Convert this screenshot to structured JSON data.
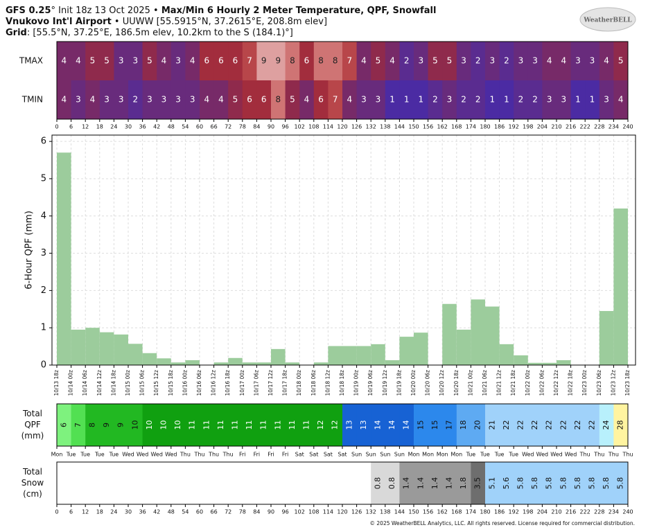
{
  "header": {
    "lines": [
      [
        {
          "text": "GFS 0.25",
          "bold": true
        },
        {
          "text": "° Init 18z 13 Oct 2025 • ",
          "bold": false
        },
        {
          "text": "Max/Min 6 Hourly 2 Meter Temperature,  QPF,  Snowfall",
          "bold": true
        }
      ],
      [
        {
          "text": "Vnukovo Int'l Airport",
          "bold": true
        },
        {
          "text": " • UUWW [55.5915°N, 37.2615°E, 208.8m elev]",
          "bold": false
        }
      ],
      [
        {
          "text": "Grid",
          "bold": true
        },
        {
          "text": ": [55.5°N, 37.25°E, 186.5m elev, 10.2km to the S (184.1)°]",
          "bold": false
        }
      ]
    ],
    "logo": "WeatherBELL",
    "footer": "© 2025 WeatherBELL Analytics, LLC. All rights reserved. License required for commercial distribution."
  },
  "chart_data": [
    {
      "type": "heatmap",
      "xticks": [
        0,
        6,
        12,
        18,
        24,
        30,
        36,
        42,
        48,
        54,
        60,
        66,
        72,
        78,
        84,
        90,
        96,
        102,
        108,
        114,
        120,
        126,
        132,
        138,
        144,
        150,
        156,
        162,
        168,
        174,
        180,
        186,
        192,
        198,
        204,
        210,
        216,
        222,
        228,
        234,
        240
      ],
      "color_scale": {
        "1": "#4b2ba3",
        "2": "#5a2c90",
        "3": "#682b7c",
        "4": "#772a68",
        "5": "#8f2a4c",
        "6": "#a22d3d",
        "7": "#b8464a",
        "8": "#cf7474",
        "9": "#dea0a0"
      },
      "rows": [
        {
          "name": "TMAX",
          "values": [
            4,
            4,
            5,
            5,
            3,
            3,
            5,
            4,
            3,
            4,
            6,
            6,
            6,
            7,
            9,
            9,
            8,
            6,
            8,
            8,
            7,
            4,
            5,
            4,
            2,
            3,
            5,
            5,
            3,
            2,
            3,
            2,
            3,
            3,
            4,
            4,
            3,
            3,
            4,
            5
          ]
        },
        {
          "name": "TMIN",
          "values": [
            4,
            3,
            4,
            3,
            3,
            2,
            3,
            3,
            3,
            3,
            4,
            4,
            5,
            6,
            6,
            8,
            5,
            4,
            6,
            7,
            4,
            3,
            3,
            1,
            1,
            1,
            2,
            3,
            2,
            2,
            1,
            1,
            2,
            2,
            3,
            3,
            1,
            1,
            3,
            4
          ]
        }
      ]
    },
    {
      "type": "histogram",
      "ylabel": "6-Hour QPF (mm)",
      "color": "#9ccc9c",
      "ylim": [
        0,
        6.17
      ],
      "yticks": [
        0,
        1,
        2,
        3,
        4,
        5,
        6
      ],
      "grid": true,
      "x_labels": [
        "10/13 18z",
        "10/14 00z",
        "10/14 06z",
        "10/14 12z",
        "10/14 18z",
        "10/15 00z",
        "10/15 06z",
        "10/15 12z",
        "10/15 18z",
        "10/16 00z",
        "10/16 06z",
        "10/16 12z",
        "10/16 18z",
        "10/17 00z",
        "10/17 06z",
        "10/17 12z",
        "10/17 18z",
        "10/18 00z",
        "10/18 06z",
        "10/18 12z",
        "10/18 18z",
        "10/19 00z",
        "10/19 06z",
        "10/19 12z",
        "10/19 18z",
        "10/20 00z",
        "10/20 06z",
        "10/20 12z",
        "10/20 18z",
        "10/21 00z",
        "10/21 06z",
        "10/21 12z",
        "10/21 18z",
        "10/22 00z",
        "10/22 06z",
        "10/22 12z",
        "10/22 18z",
        "10/23 00z",
        "10/23 06z",
        "10/23 12z",
        "10/23 18z"
      ],
      "values": [
        5.7,
        0.95,
        1.0,
        0.88,
        0.82,
        0.57,
        0.32,
        0.18,
        0.07,
        0.13,
        0,
        0.07,
        0.19,
        0.07,
        0.07,
        0.43,
        0.07,
        0,
        0.07,
        0.51,
        0.51,
        0.51,
        0.56,
        0.13,
        0.76,
        0.87,
        0,
        1.64,
        0.95,
        1.76,
        1.57,
        0.56,
        0.26,
        0.06,
        0.06,
        0.13,
        0,
        0,
        1.45,
        4.2
      ]
    },
    {
      "type": "accumulation",
      "label": [
        "Total",
        "QPF",
        "(mm)"
      ],
      "values": [
        6,
        7,
        8,
        9,
        9,
        10,
        10,
        10,
        10,
        11,
        11,
        11,
        11,
        11,
        11,
        11,
        11,
        11,
        12,
        12,
        13,
        13,
        14,
        14,
        14,
        15,
        15,
        17,
        18,
        20,
        21,
        22,
        22,
        22,
        22,
        22,
        22,
        22,
        24,
        28
      ],
      "colors": [
        "#7ef27e",
        "#52e052",
        "#22b822",
        "#22b822",
        "#22b822",
        "#22b822",
        "#10a010",
        "#10a010",
        "#10a010",
        "#10a010",
        "#10a010",
        "#10a010",
        "#10a010",
        "#10a010",
        "#10a010",
        "#10a010",
        "#10a010",
        "#10a010",
        "#10a010",
        "#10a010",
        "#1762d4",
        "#1762d4",
        "#1762d4",
        "#1762d4",
        "#1762d4",
        "#2c88ec",
        "#2c88ec",
        "#2c88ec",
        "#5eaaf2",
        "#5eaaf2",
        "#a0d2fa",
        "#a0d2fa",
        "#a0d2fa",
        "#a0d2fa",
        "#a0d2fa",
        "#a0d2fa",
        "#a0d2fa",
        "#a0d2fa",
        "#b8f0fc",
        "#fff4a0"
      ],
      "day_labels": [
        "Mon",
        "Tue",
        "Tue",
        "Tue",
        "Tue",
        "Wed",
        "Wed",
        "Wed",
        "Wed",
        "Thu",
        "Thu",
        "Thu",
        "Thu",
        "Fri",
        "Fri",
        "Fri",
        "Fri",
        "Sat",
        "Sat",
        "Sat",
        "Sat",
        "Sun",
        "Sun",
        "Sun",
        "Sun",
        "Mon",
        "Mon",
        "Mon",
        "Mon",
        "Tue",
        "Tue",
        "Tue",
        "Tue",
        "Wed",
        "Wed",
        "Wed",
        "Wed",
        "Thu",
        "Thu",
        "Thu",
        "Thu"
      ]
    },
    {
      "type": "accumulation",
      "label": [
        "Total",
        "Snow",
        "(cm)"
      ],
      "values": [
        null,
        null,
        null,
        null,
        null,
        null,
        null,
        null,
        null,
        null,
        null,
        null,
        null,
        null,
        null,
        null,
        null,
        null,
        null,
        null,
        null,
        null,
        0.8,
        0.8,
        1.4,
        1.4,
        1.4,
        1.4,
        1.8,
        3.5,
        5.1,
        5.6,
        5.8,
        5.8,
        5.8,
        5.8,
        5.8,
        5.8,
        5.8,
        5.8
      ],
      "colors": [
        null,
        null,
        null,
        null,
        null,
        null,
        null,
        null,
        null,
        null,
        null,
        null,
        null,
        null,
        null,
        null,
        null,
        null,
        null,
        null,
        null,
        null,
        "#d9d9d9",
        "#d9d9d9",
        "#9a9a9a",
        "#9a9a9a",
        "#9a9a9a",
        "#9a9a9a",
        "#9a9a9a",
        "#6e6e6e",
        "#a0d2fa",
        "#a0d2fa",
        "#a0d2fa",
        "#a0d2fa",
        "#a0d2fa",
        "#a0d2fa",
        "#a0d2fa",
        "#a0d2fa",
        "#a0d2fa",
        "#a0d2fa"
      ],
      "xticks": [
        0,
        6,
        12,
        18,
        24,
        30,
        36,
        42,
        48,
        54,
        60,
        66,
        72,
        78,
        84,
        90,
        96,
        102,
        108,
        114,
        120,
        126,
        132,
        138,
        144,
        150,
        156,
        162,
        168,
        174,
        180,
        186,
        192,
        198,
        204,
        210,
        216,
        222,
        228,
        234,
        240
      ]
    }
  ]
}
